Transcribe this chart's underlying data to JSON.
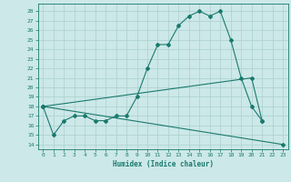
{
  "xlabel": "Humidex (Indice chaleur)",
  "bg_color": "#cce8e8",
  "grid_color": "#aacfcf",
  "line_color": "#1a7a6e",
  "xlim": [
    -0.5,
    23.5
  ],
  "ylim": [
    13.5,
    28.8
  ],
  "yticks": [
    14,
    15,
    16,
    17,
    18,
    19,
    20,
    21,
    22,
    23,
    24,
    25,
    26,
    27,
    28
  ],
  "xticks": [
    0,
    1,
    2,
    3,
    4,
    5,
    6,
    7,
    8,
    9,
    10,
    11,
    12,
    13,
    14,
    15,
    16,
    17,
    18,
    19,
    20,
    21,
    22,
    23
  ],
  "line1_x": [
    0,
    1,
    2,
    3,
    4,
    5,
    6,
    7,
    8,
    9,
    10,
    11,
    12,
    13,
    14,
    15,
    16,
    17,
    18,
    19,
    20,
    21
  ],
  "line1_y": [
    18,
    15,
    16.5,
    17,
    17,
    16.5,
    16.5,
    17,
    17,
    19,
    22,
    24.5,
    24.5,
    26.5,
    27.5,
    28,
    27.5,
    28,
    25,
    21,
    18,
    16.5
  ],
  "line2_x": [
    0,
    23
  ],
  "line2_y": [
    18,
    14
  ],
  "line3_x": [
    0,
    20,
    21
  ],
  "line3_y": [
    18,
    21,
    16.5
  ]
}
